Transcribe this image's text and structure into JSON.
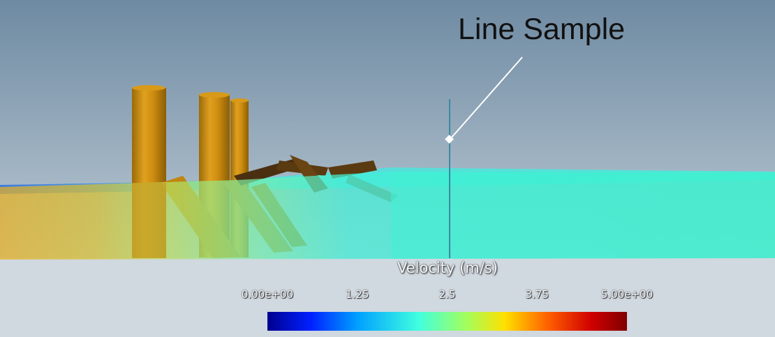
{
  "callout": {
    "label": "Line Sample"
  },
  "legend": {
    "title": "Velocity (m/s)",
    "min": 0,
    "max": 5,
    "ticks": [
      {
        "value": 0,
        "label": "0.00e+00"
      },
      {
        "value": 1.25,
        "label": "1.25"
      },
      {
        "value": 2.5,
        "label": "2.5"
      },
      {
        "value": 3.75,
        "label": "3.75"
      },
      {
        "value": 5,
        "label": "5.00e+00"
      }
    ],
    "colormap": [
      "#00008f",
      "#0020ff",
      "#00a0ff",
      "#40ffe0",
      "#a0ff60",
      "#ffe000",
      "#ff6000",
      "#d00000",
      "#800000"
    ]
  },
  "colors": {
    "sky_top": "#6e8aa2",
    "sky_bottom": "#b4c4d0",
    "ground": "#d0d8e0",
    "flow_main": "#40f0d0",
    "structure": "#c88a10",
    "probe_line": "#3a8aa0"
  }
}
